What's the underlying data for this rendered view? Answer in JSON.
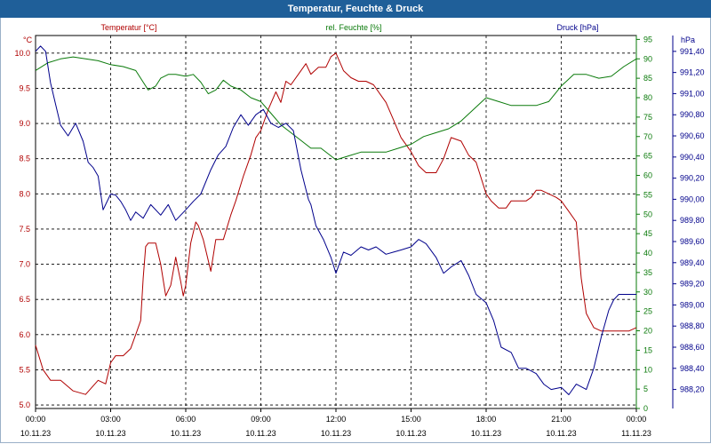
{
  "window_title": "Temperatur, Feuchte & Druck",
  "chart_data": {
    "type": "line",
    "title": "Temperatur, Feuchte & Druck",
    "x_ticks": [
      {
        "time": "00:00",
        "date": "10.11.23",
        "h": 0
      },
      {
        "time": "03:00",
        "date": "10.11.23",
        "h": 3
      },
      {
        "time": "06:00",
        "date": "10.11.23",
        "h": 6
      },
      {
        "time": "09:00",
        "date": "10.11.23",
        "h": 9
      },
      {
        "time": "12:00",
        "date": "10.11.23",
        "h": 12
      },
      {
        "time": "15:00",
        "date": "10.11.23",
        "h": 15
      },
      {
        "time": "18:00",
        "date": "10.11.23",
        "h": 18
      },
      {
        "time": "21:00",
        "date": "10.11.23",
        "h": 21
      },
      {
        "time": "00:00",
        "date": "11.11.23",
        "h": 24
      }
    ],
    "xlim": [
      0,
      24
    ],
    "axes": {
      "temperature": {
        "label": "Temperatur [°C]",
        "unit": "°C",
        "color": "#b00000",
        "range": [
          4.95,
          10.25
        ],
        "ticks": [
          "5.0",
          "5.5",
          "6.0",
          "6.5",
          "7.0",
          "7.5",
          "8.0",
          "8.5",
          "9.0",
          "9.5",
          "10.0"
        ]
      },
      "humidity": {
        "label": "rel. Feuchte [%]",
        "unit": "%",
        "color": "#0a7a0a",
        "range": [
          0,
          96
        ],
        "ticks": [
          "0",
          "5",
          "10",
          "15",
          "20",
          "25",
          "30",
          "35",
          "40",
          "45",
          "50",
          "55",
          "60",
          "65",
          "70",
          "75",
          "80",
          "85",
          "90",
          "95"
        ]
      },
      "pressure": {
        "label": "Druck [hPa]",
        "unit": "hPa",
        "color": "#00008b",
        "range": [
          988.02,
          991.55
        ],
        "ticks": [
          "988,20",
          "988,40",
          "988,60",
          "988,80",
          "989,00",
          "989,20",
          "989,40",
          "989,60",
          "989,80",
          "990,00",
          "990,20",
          "990,40",
          "990,60",
          "990,80",
          "991,00",
          "991,20",
          "991,40"
        ]
      }
    },
    "series": [
      {
        "name": "Temperatur",
        "axis": "temperature",
        "color": "#b00000",
        "x": [
          0,
          0.3,
          0.6,
          1,
          1.5,
          2,
          2.5,
          2.8,
          3,
          3.2,
          3.5,
          3.8,
          4,
          4.2,
          4.3,
          4.4,
          4.5,
          4.8,
          5,
          5.2,
          5.4,
          5.6,
          5.8,
          5.9,
          6,
          6.2,
          6.4,
          6.5,
          6.7,
          7,
          7.2,
          7.5,
          7.8,
          8,
          8.3,
          8.6,
          8.8,
          9,
          9.3,
          9.6,
          9.8,
          10,
          10.2,
          10.5,
          10.8,
          11,
          11.3,
          11.6,
          11.8,
          12,
          12.3,
          12.6,
          12.9,
          13.2,
          13.5,
          13.8,
          14,
          14.3,
          14.6,
          15,
          15.3,
          15.6,
          16,
          16.3,
          16.6,
          17,
          17.3,
          17.6,
          18,
          18.2,
          18.5,
          18.8,
          19,
          19.3,
          19.6,
          19.8,
          20,
          20.2,
          20.5,
          20.8,
          21,
          21.3,
          21.6,
          21.8,
          22,
          22.3,
          22.6,
          22.8,
          23,
          23.3,
          23.5,
          23.7,
          24
        ],
        "values": [
          5.85,
          5.5,
          5.35,
          5.35,
          5.2,
          5.15,
          5.35,
          5.3,
          5.6,
          5.7,
          5.7,
          5.8,
          6.0,
          6.2,
          6.8,
          7.25,
          7.3,
          7.3,
          7.0,
          6.55,
          6.7,
          7.1,
          6.75,
          6.55,
          6.7,
          7.3,
          7.6,
          7.55,
          7.35,
          6.9,
          7.35,
          7.35,
          7.7,
          7.9,
          8.25,
          8.55,
          8.8,
          8.9,
          9.2,
          9.45,
          9.3,
          9.6,
          9.55,
          9.7,
          9.85,
          9.7,
          9.8,
          9.8,
          9.95,
          10.0,
          9.75,
          9.65,
          9.6,
          9.6,
          9.55,
          9.4,
          9.3,
          9.05,
          8.8,
          8.6,
          8.4,
          8.3,
          8.3,
          8.5,
          8.8,
          8.75,
          8.55,
          8.45,
          8.0,
          7.9,
          7.8,
          7.8,
          7.9,
          7.9,
          7.9,
          7.95,
          8.05,
          8.05,
          8.0,
          7.95,
          7.9,
          7.75,
          7.6,
          6.8,
          6.3,
          6.1,
          6.05,
          6.05,
          6.05,
          6.05,
          6.05,
          6.05,
          6.1
        ]
      },
      {
        "name": "rel. Feuchte",
        "axis": "humidity",
        "color": "#0a7a0a",
        "x": [
          0,
          0.5,
          1,
          1.5,
          2,
          2.5,
          3,
          3.5,
          4,
          4.3,
          4.5,
          4.8,
          5,
          5.3,
          5.6,
          6,
          6.3,
          6.6,
          6.9,
          7.2,
          7.5,
          7.8,
          8.2,
          8.6,
          9,
          9.4,
          9.8,
          10.2,
          10.6,
          11,
          11.4,
          11.8,
          12,
          12.5,
          13,
          13.5,
          14,
          14.5,
          15,
          15.5,
          16,
          16.5,
          17,
          17.5,
          18,
          18.5,
          19,
          19.5,
          20,
          20.5,
          21,
          21.5,
          22,
          22.5,
          23,
          23.5,
          24
        ],
        "values": [
          87,
          89,
          90,
          90.5,
          90,
          89.5,
          88.5,
          88,
          87,
          84,
          82,
          83,
          85,
          86,
          86,
          85.5,
          86,
          84,
          81,
          82,
          84.5,
          83,
          82,
          80,
          79,
          76,
          73,
          71,
          69,
          67,
          67,
          65,
          64,
          65,
          66,
          66,
          66,
          67,
          68,
          70,
          71,
          72,
          74,
          77,
          80,
          79,
          78,
          78,
          78,
          79,
          83,
          86,
          86,
          85,
          85.5,
          88,
          90
        ]
      },
      {
        "name": "Druck",
        "axis": "pressure",
        "color": "#00008b",
        "x": [
          0,
          0.2,
          0.4,
          0.6,
          0.8,
          1,
          1.3,
          1.6,
          1.9,
          2.1,
          2.3,
          2.5,
          2.7,
          3,
          3.2,
          3.4,
          3.6,
          3.8,
          4,
          4.3,
          4.6,
          5,
          5.3,
          5.6,
          6,
          6.3,
          6.6,
          7,
          7.3,
          7.6,
          7.9,
          8.2,
          8.5,
          8.8,
          9.1,
          9.4,
          9.7,
          10,
          10.3,
          10.6,
          10.9,
          11,
          11.2,
          11.5,
          11.8,
          12,
          12.3,
          12.6,
          13,
          13.3,
          13.6,
          14,
          14.3,
          14.6,
          15,
          15.3,
          15.6,
          16,
          16.3,
          16.6,
          17,
          17.3,
          17.6,
          18,
          18.3,
          18.6,
          19,
          19.3,
          19.6,
          20,
          20.3,
          20.6,
          21,
          21.3,
          21.6,
          22,
          22.3,
          22.6,
          22.9,
          23.1,
          23.3,
          23.5,
          23.7,
          23.85,
          24
        ],
        "values": [
          991.4,
          991.45,
          991.4,
          991.1,
          990.9,
          990.7,
          990.6,
          990.72,
          990.55,
          990.35,
          990.3,
          990.22,
          989.9,
          990.05,
          990.04,
          989.98,
          989.9,
          989.8,
          989.88,
          989.82,
          989.95,
          989.85,
          989.95,
          989.8,
          989.9,
          989.98,
          990.05,
          990.28,
          990.42,
          990.5,
          990.68,
          990.8,
          990.7,
          990.8,
          990.85,
          990.72,
          990.68,
          990.72,
          990.65,
          990.28,
          990.0,
          989.95,
          989.75,
          989.62,
          989.45,
          989.3,
          989.5,
          989.47,
          989.55,
          989.52,
          989.55,
          989.48,
          989.5,
          989.52,
          989.55,
          989.62,
          989.58,
          989.45,
          989.3,
          989.36,
          989.42,
          989.28,
          989.1,
          989.02,
          988.85,
          988.6,
          988.55,
          988.4,
          988.4,
          988.35,
          988.25,
          988.2,
          988.22,
          988.15,
          988.25,
          988.2,
          988.4,
          988.7,
          988.95,
          989.05,
          989.1,
          989.1,
          989.1,
          989.1,
          989.1
        ]
      }
    ]
  }
}
